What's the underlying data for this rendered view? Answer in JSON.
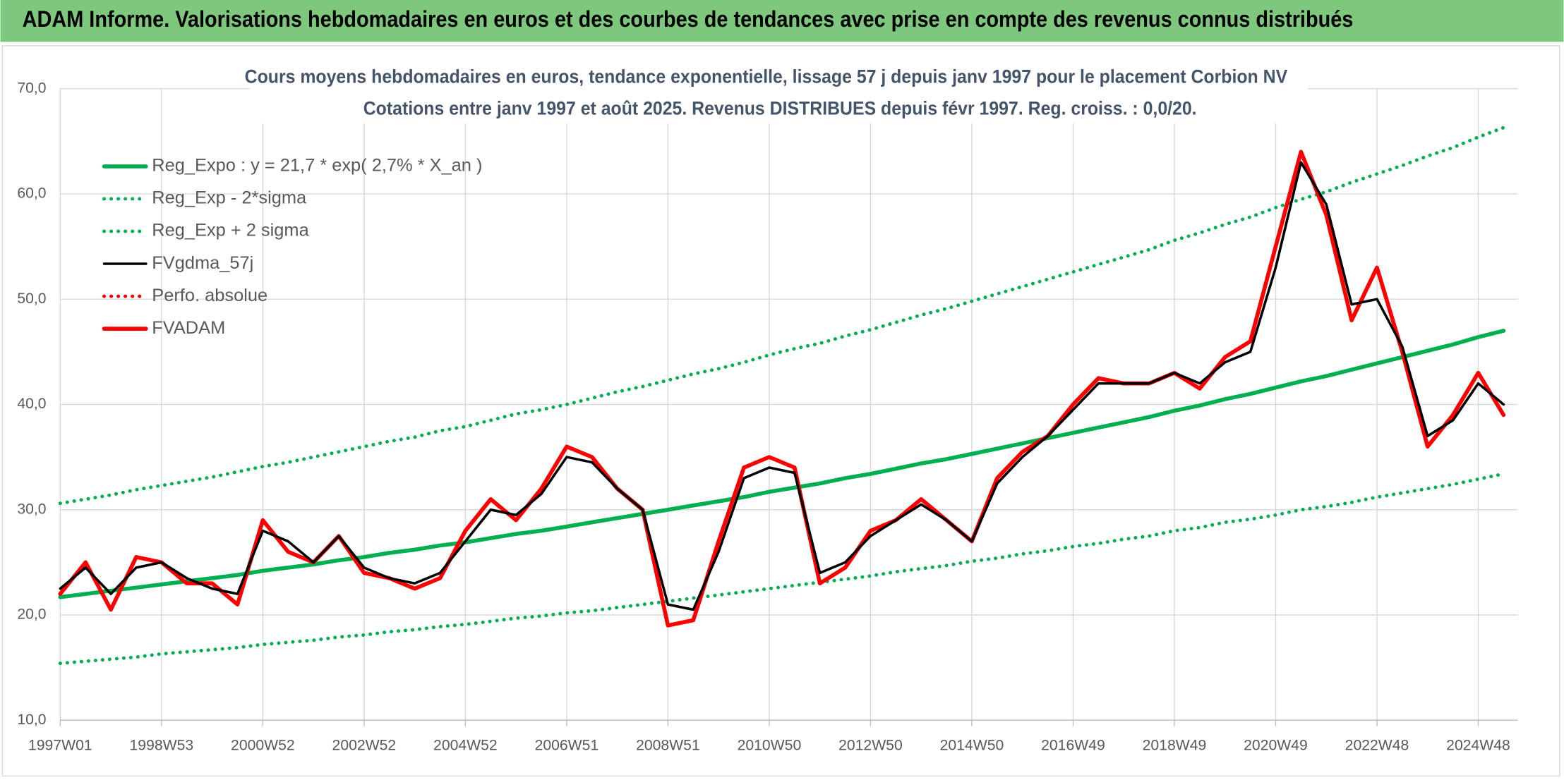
{
  "header": {
    "title": "ADAM Informe. Valorisations hebdomadaires en euros et des courbes de tendances avec prise en compte des revenus connus distribués"
  },
  "chart_data": {
    "type": "line",
    "title": "Cours moyens hebdomadaires en euros, tendance exponentielle, lissage 57 j depuis janv 1997 pour le placement Corbion NV",
    "subtitle": "Cotations entre janv 1997 et août 2025. Revenus DISTRIBUES depuis févr 1997. Reg. croiss. : 0,0/20.",
    "categories": [
      "1997W01",
      null,
      null,
      null,
      "1998W53",
      null,
      null,
      null,
      "2000W52",
      null,
      null,
      null,
      "2002W52",
      null,
      null,
      null,
      "2004W52",
      null,
      null,
      null,
      "2006W51",
      null,
      null,
      null,
      "2008W51",
      null,
      null,
      null,
      "2010W50",
      null,
      null,
      null,
      "2012W50",
      null,
      null,
      null,
      "2014W50",
      null,
      null,
      null,
      "2016W49",
      null,
      null,
      null,
      "2018W49",
      null,
      null,
      null,
      "2020W49",
      null,
      null,
      null,
      "2022W48",
      null,
      null,
      null,
      "2024W48",
      null
    ],
    "ylim": [
      10,
      70
    ],
    "yticks": [
      {
        "value": 10,
        "label": "10,0"
      },
      {
        "value": 20,
        "label": "20,0"
      },
      {
        "value": 30,
        "label": "30,0"
      },
      {
        "value": 40,
        "label": "40,0"
      },
      {
        "value": 50,
        "label": "50,0"
      },
      {
        "value": 60,
        "label": "60,0"
      },
      {
        "value": 70,
        "label": "70,0"
      }
    ],
    "grid": true,
    "legend": "upper-left",
    "series": [
      {
        "name": "Reg_Expo : y = 21,7 * exp( 2,7% *  X_an )",
        "color": "#00b050",
        "line_style": "solid",
        "values": [
          21.7,
          22.0,
          22.3,
          22.6,
          22.9,
          23.2,
          23.5,
          23.8,
          24.2,
          24.5,
          24.8,
          25.2,
          25.5,
          25.9,
          26.2,
          26.6,
          26.9,
          27.3,
          27.7,
          28.0,
          28.4,
          28.8,
          29.2,
          29.6,
          30.0,
          30.4,
          30.8,
          31.2,
          31.7,
          32.1,
          32.5,
          33.0,
          33.4,
          33.9,
          34.4,
          34.8,
          35.3,
          35.8,
          36.3,
          36.8,
          37.3,
          37.8,
          38.3,
          38.8,
          39.4,
          39.9,
          40.5,
          41.0,
          41.6,
          42.2,
          42.7,
          43.3,
          43.9,
          44.5,
          45.1,
          45.7,
          46.4,
          47.0
        ]
      },
      {
        "name": "Reg_Exp - 2*sigma",
        "color": "#00b050",
        "line_style": "dotted",
        "values": [
          15.4,
          15.6,
          15.8,
          16.0,
          16.3,
          16.5,
          16.7,
          16.9,
          17.2,
          17.4,
          17.6,
          17.9,
          18.1,
          18.4,
          18.6,
          18.9,
          19.1,
          19.4,
          19.7,
          19.9,
          20.2,
          20.4,
          20.7,
          21.0,
          21.3,
          21.6,
          21.9,
          22.2,
          22.5,
          22.8,
          23.1,
          23.4,
          23.7,
          24.1,
          24.4,
          24.7,
          25.1,
          25.4,
          25.8,
          26.1,
          26.5,
          26.8,
          27.2,
          27.5,
          28.0,
          28.3,
          28.8,
          29.1,
          29.5,
          30.0,
          30.3,
          30.7,
          31.2,
          31.6,
          32.0,
          32.4,
          32.9,
          33.4
        ]
      },
      {
        "name": "Reg_Exp + 2 sigma",
        "color": "#00b050",
        "line_style": "dotted",
        "values": [
          30.6,
          31.0,
          31.4,
          31.9,
          32.3,
          32.7,
          33.1,
          33.6,
          34.1,
          34.5,
          35.0,
          35.5,
          36.0,
          36.5,
          36.9,
          37.5,
          37.9,
          38.5,
          39.1,
          39.5,
          40.0,
          40.6,
          41.2,
          41.7,
          42.3,
          42.9,
          43.4,
          44.0,
          44.7,
          45.3,
          45.8,
          46.5,
          47.1,
          47.8,
          48.5,
          49.1,
          49.8,
          50.5,
          51.2,
          51.9,
          52.6,
          53.3,
          54.0,
          54.7,
          55.6,
          56.3,
          57.1,
          57.8,
          58.7,
          59.5,
          60.2,
          61.1,
          61.9,
          62.7,
          63.6,
          64.4,
          65.4,
          66.3
        ]
      },
      {
        "name": "FVgdma_57j",
        "color": "#000000",
        "line_style": "solid",
        "values": [
          22.5,
          24.5,
          22,
          24.5,
          25,
          23.5,
          22.5,
          22,
          28,
          27,
          25,
          27.5,
          24.5,
          23.5,
          23,
          24,
          27,
          30,
          29.5,
          31.5,
          35,
          34.5,
          32,
          30,
          21,
          20.5,
          26,
          33,
          34,
          33.5,
          24,
          25,
          27.5,
          29,
          30.5,
          29,
          27,
          32.5,
          35,
          37,
          39.5,
          42,
          42,
          42,
          43,
          42,
          44,
          45,
          53,
          63,
          59,
          49.5,
          50,
          45.5,
          37,
          38.5,
          42,
          40
        ]
      },
      {
        "name": "Perfo. absolue",
        "color": "#ff0000",
        "line_style": "dotted",
        "values": [
          null,
          null,
          null,
          null,
          null,
          null,
          null,
          null,
          null,
          null,
          null,
          null,
          null,
          null,
          null,
          null,
          null,
          null,
          null,
          null,
          null,
          null,
          null,
          null,
          null,
          null,
          null,
          null,
          null,
          null,
          null,
          null,
          null,
          null,
          null,
          null,
          null,
          null,
          null,
          null,
          null,
          null,
          null,
          null,
          null,
          null,
          null,
          null,
          null,
          null,
          null,
          null,
          null,
          null,
          null,
          null,
          null,
          null
        ]
      },
      {
        "name": "FVADAM",
        "color": "#ff0000",
        "line_style": "solid",
        "values": [
          22,
          25,
          20.5,
          25.5,
          25,
          23,
          23,
          21,
          29,
          26,
          25,
          27.5,
          24,
          23.5,
          22.5,
          23.5,
          28,
          31,
          29,
          32,
          36,
          35,
          32,
          30,
          19,
          19.5,
          27,
          34,
          35,
          34,
          23,
          24.5,
          28,
          29,
          31,
          29,
          27,
          33,
          35.5,
          37,
          40,
          42.5,
          42,
          42,
          43,
          41.5,
          44.5,
          46,
          55,
          64,
          58,
          48,
          53,
          45,
          36,
          39,
          43,
          39
        ]
      }
    ]
  }
}
